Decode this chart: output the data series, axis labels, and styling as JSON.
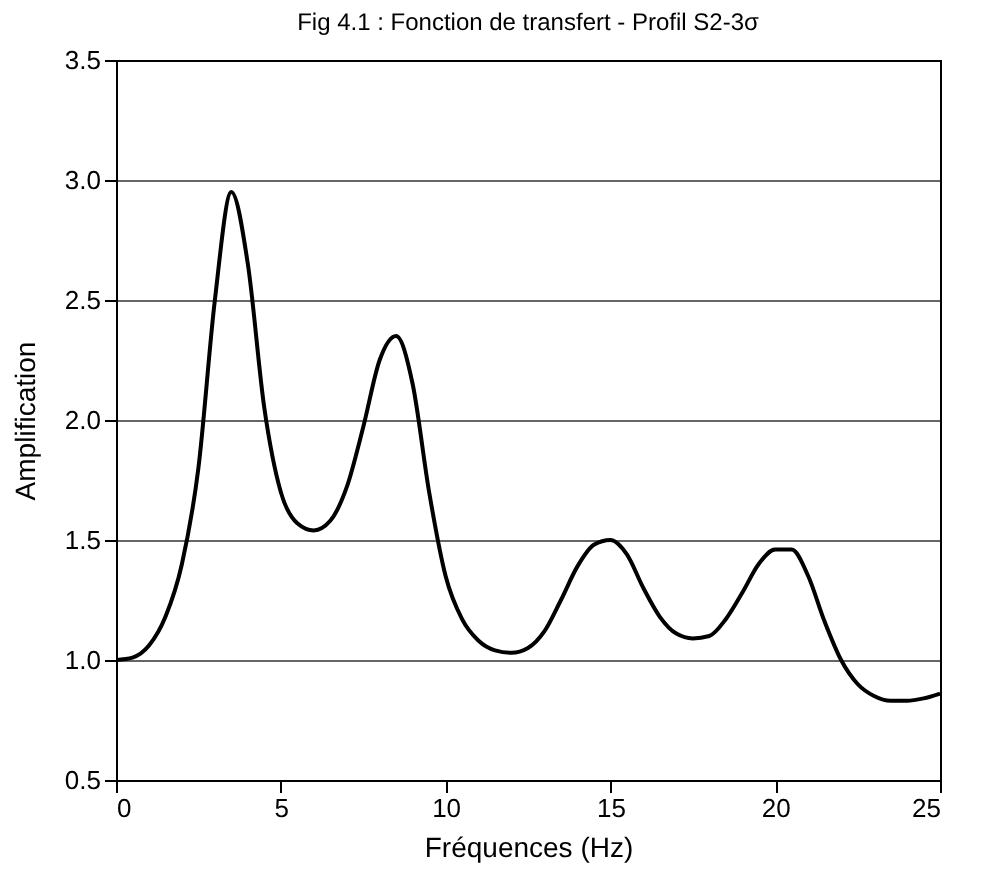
{
  "chart_data": {
    "type": "line",
    "title": "Fig 4.1 : Fonction de transfert - Profil S2-3σ",
    "xlabel": "Fréquences (Hz)",
    "ylabel": "Amplification",
    "x": [
      0,
      0.5,
      1,
      1.5,
      2,
      2.5,
      3,
      3.5,
      4,
      4.5,
      5,
      5.5,
      6,
      6.5,
      7,
      7.5,
      8,
      8.5,
      9,
      9.5,
      10,
      10.5,
      11,
      11.5,
      12,
      12.5,
      13,
      13.5,
      14,
      14.5,
      15,
      15.5,
      16,
      16.5,
      17,
      17.5,
      18,
      18.5,
      19,
      19.5,
      20,
      20.5,
      21,
      21.5,
      22,
      22.5,
      23,
      23.5,
      24,
      24.5,
      25
    ],
    "series": [
      {
        "color": "#000000",
        "values": [
          1.0,
          1.01,
          1.06,
          1.18,
          1.4,
          1.8,
          2.5,
          2.95,
          2.65,
          2.05,
          1.7,
          1.57,
          1.54,
          1.58,
          1.72,
          1.97,
          2.25,
          2.35,
          2.15,
          1.7,
          1.35,
          1.17,
          1.08,
          1.04,
          1.03,
          1.05,
          1.12,
          1.25,
          1.39,
          1.48,
          1.5,
          1.44,
          1.3,
          1.18,
          1.11,
          1.09,
          1.1,
          1.17,
          1.28,
          1.4,
          1.46,
          1.46,
          1.35,
          1.16,
          1.0,
          0.9,
          0.85,
          0.83,
          0.83,
          0.84,
          0.86
        ]
      }
    ],
    "xlim": [
      0,
      25
    ],
    "xticks": [
      0,
      5,
      10,
      15,
      20,
      25
    ],
    "ylim": [
      0.5,
      3.5
    ],
    "yticks": [
      {
        "value": 0.5,
        "label": "0.5"
      },
      {
        "value": 1,
        "label": "1.0"
      },
      {
        "value": 1.5,
        "label": "1.5"
      },
      {
        "value": 2,
        "label": "2.0"
      },
      {
        "value": 2.5,
        "label": "2.5"
      },
      {
        "value": 3,
        "label": "3.0"
      },
      {
        "value": 3.5,
        "label": "3.5"
      }
    ],
    "grid": "y",
    "marker": "none",
    "line_style": "solid"
  }
}
